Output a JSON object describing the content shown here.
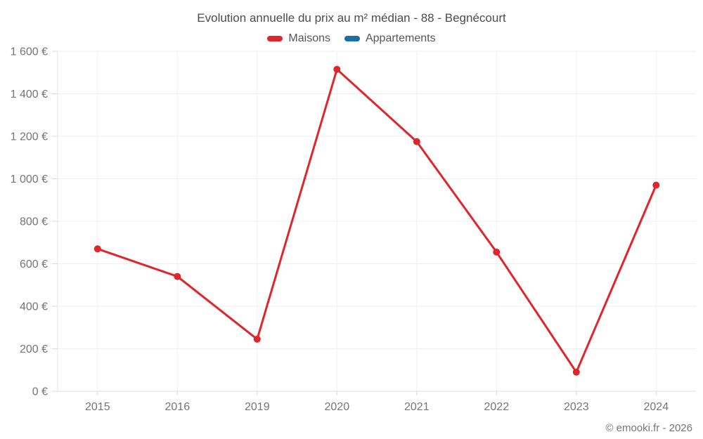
{
  "footer": {
    "copyright": "© emooki.fr - 2026"
  },
  "colors": {
    "background": "#ffffff",
    "grid_h": "#efefef",
    "grid_v": "#f1f1f1",
    "axis_bottom": "#dcdcdc",
    "axis_left": "#e5e5e5",
    "tick": "#d8d8d8",
    "tick_text": "#757575",
    "title_text": "#4c4c4c",
    "legend_text": "#555555"
  },
  "chart_data": {
    "type": "line",
    "title": "Evolution annuelle du prix au m² médian - 88 - Begnécourt",
    "categories": [
      "2015",
      "2016",
      "2019",
      "2020",
      "2021",
      "2022",
      "2023",
      "2024"
    ],
    "series": [
      {
        "name": "Maisons",
        "color": "#e0252b",
        "values": [
          670,
          540,
          245,
          1515,
          1175,
          655,
          90,
          970
        ]
      },
      {
        "name": "Appartements",
        "color": "#1c6ea4",
        "values": []
      }
    ],
    "xlabel": "",
    "ylabel": "",
    "unit": "€",
    "ylim": [
      0,
      1600
    ],
    "y_ticks": [
      0,
      200,
      400,
      600,
      800,
      1000,
      1200,
      1400,
      1600
    ],
    "y_tick_labels": [
      "0 €",
      "200 €",
      "400 €",
      "600 €",
      "800 €",
      "1 000 €",
      "1 200 €",
      "1 400 €",
      "1 600 €"
    ],
    "grid": "on",
    "legend_position": "top",
    "marker": "circle"
  }
}
